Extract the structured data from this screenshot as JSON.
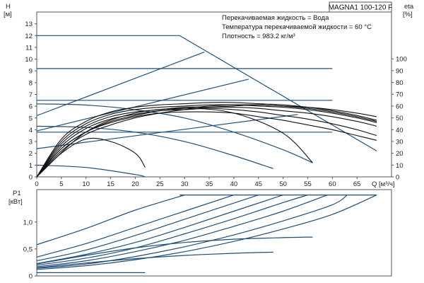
{
  "chart_data": [
    {
      "type": "line",
      "title": "MAGNA1 100-120 F",
      "info": [
        "Перекачиваемая жидкость = Вода",
        "Температура перекачиваемой жидкости = 60 °C",
        "Плотность = 983.2 кг/м³"
      ],
      "xlabel": "Q [м³/ч]",
      "ylabel": "H",
      "ylabel_unit": "[м]",
      "y2label": "eta",
      "y2label_unit": "[%]",
      "xlim": [
        0,
        72
      ],
      "ylim": [
        0,
        14
      ],
      "y2lim": [
        0,
        100
      ],
      "x_ticks": [
        0,
        5,
        10,
        15,
        20,
        25,
        30,
        35,
        40,
        45,
        50,
        55,
        60,
        65
      ],
      "y_ticks": [
        0,
        1,
        2,
        3,
        4,
        5,
        6,
        7,
        8,
        9,
        10,
        11,
        12,
        13
      ],
      "y2_ticks": [
        0,
        10,
        20,
        30,
        40,
        50,
        60,
        70,
        80,
        90,
        100
      ],
      "grid": false,
      "series": [
        {
          "kind": "head",
          "color": "#1f4e79",
          "x": [
            0,
            29,
            69
          ],
          "y": [
            12,
            12,
            2.2
          ]
        },
        {
          "kind": "head",
          "color": "#1f4e79",
          "x": [
            0,
            60
          ],
          "y": [
            9.2,
            9.2
          ]
        },
        {
          "kind": "head",
          "color": "#1f4e79",
          "x": [
            0,
            60
          ],
          "y": [
            6.5,
            6.5
          ]
        },
        {
          "kind": "head",
          "color": "#1f4e79",
          "x": [
            0,
            60
          ],
          "y": [
            3.8,
            3.8
          ]
        },
        {
          "kind": "head",
          "color": "#1f4e79",
          "x": [
            0,
            34
          ],
          "y": [
            5.2,
            10.6
          ]
        },
        {
          "kind": "head",
          "color": "#1f4e79",
          "x": [
            0,
            43
          ],
          "y": [
            3.9,
            8.3
          ]
        },
        {
          "kind": "head",
          "color": "#1f4e79",
          "x": [
            0,
            53
          ],
          "y": [
            2.4,
            5.3
          ]
        },
        {
          "kind": "head",
          "color": "#1f4e79",
          "x": [
            0,
            10,
            20,
            30,
            40,
            50,
            56
          ],
          "y": [
            6.2,
            6.1,
            5.7,
            5.0,
            3.8,
            2.3,
            1.2
          ]
        },
        {
          "kind": "head",
          "color": "#1f4e79",
          "x": [
            0,
            10,
            20,
            30,
            40,
            48
          ],
          "y": [
            4.3,
            4.2,
            3.8,
            3.0,
            1.8,
            0.7
          ]
        },
        {
          "kind": "head",
          "color": "#1f4e79",
          "x": [
            0,
            10,
            20,
            22
          ],
          "y": [
            1.0,
            0.8,
            0.2,
            0.0
          ]
        },
        {
          "kind": "eta",
          "color": "#111111",
          "x": [
            0,
            5,
            10,
            15,
            20,
            25,
            30,
            35,
            40,
            45,
            50,
            55,
            60,
            65,
            69
          ],
          "y": [
            0,
            24,
            38,
            46,
            51,
            54,
            55,
            55,
            54,
            51,
            48,
            44,
            40,
            35,
            31
          ]
        },
        {
          "kind": "eta",
          "color": "#111111",
          "x": [
            0,
            5,
            10,
            15,
            20,
            25,
            30,
            35,
            40,
            45,
            50,
            55,
            60,
            65,
            69
          ],
          "y": [
            0,
            26,
            41,
            49,
            53,
            56,
            57,
            58,
            57,
            55,
            52,
            49,
            45,
            40,
            35
          ]
        },
        {
          "kind": "eta",
          "color": "#111111",
          "x": [
            0,
            5,
            10,
            15,
            20,
            25,
            30,
            35,
            40,
            45,
            50,
            55,
            60,
            65,
            69
          ],
          "y": [
            0,
            28,
            43,
            51,
            55,
            57,
            59,
            59,
            59,
            58,
            56,
            54,
            51,
            47,
            43
          ]
        },
        {
          "kind": "eta",
          "color": "#111111",
          "x": [
            0,
            5,
            10,
            15,
            20,
            25,
            30,
            35,
            40,
            45,
            50,
            55,
            60,
            65,
            69
          ],
          "y": [
            0,
            30,
            45,
            53,
            57,
            59,
            60,
            61,
            61,
            60,
            59,
            57,
            54,
            50,
            46
          ]
        },
        {
          "kind": "eta",
          "color": "#111111",
          "x": [
            0,
            5,
            10,
            15,
            20,
            25,
            30,
            35,
            40,
            45,
            50,
            55,
            60,
            65,
            69
          ],
          "y": [
            0,
            32,
            47,
            55,
            59,
            61,
            62,
            63,
            63,
            62,
            61,
            59,
            56,
            52,
            48
          ]
        },
        {
          "kind": "eta",
          "color": "#111111",
          "x": [
            0,
            5,
            10,
            15,
            20,
            25,
            30,
            35,
            40,
            45,
            50,
            55,
            60,
            65,
            69
          ],
          "y": [
            0,
            22,
            36,
            44,
            50,
            54,
            57,
            59,
            60,
            61,
            60,
            59,
            57,
            54,
            51
          ]
        },
        {
          "kind": "eta",
          "color": "#111111",
          "x": [
            0,
            5,
            10,
            15,
            20,
            25,
            30,
            35,
            40,
            45,
            50,
            55,
            60,
            65,
            69
          ],
          "y": [
            0,
            24,
            38,
            47,
            52,
            56,
            58,
            60,
            61,
            61,
            60,
            58,
            55,
            51,
            47
          ]
        },
        {
          "kind": "eta",
          "color": "#111111",
          "x": [
            0,
            5,
            10,
            15,
            20,
            22
          ],
          "y": [
            0,
            20,
            32,
            30,
            20,
            8
          ]
        },
        {
          "kind": "eta",
          "color": "#111111",
          "x": [
            0,
            10,
            20,
            30,
            40,
            50,
            56
          ],
          "y": [
            0,
            38,
            54,
            58,
            54,
            37,
            12
          ]
        }
      ]
    },
    {
      "type": "line",
      "xlabel": "",
      "ylabel": "P1",
      "ylabel_unit": "[кВт]",
      "xlim": [
        0,
        72
      ],
      "ylim": [
        0,
        1.6
      ],
      "y_ticks": [
        0,
        0.5,
        1.0
      ],
      "y_tick_labels": [
        "0",
        "0,5",
        "1,0"
      ],
      "grid": false,
      "series": [
        {
          "kind": "power",
          "color": "#1f4e79",
          "x": [
            0,
            10,
            20,
            30
          ],
          "y": [
            0.58,
            0.88,
            1.22,
            1.5
          ]
        },
        {
          "kind": "power",
          "color": "#1f4e79",
          "x": [
            0,
            10,
            20,
            30,
            40
          ],
          "y": [
            0.35,
            0.6,
            0.9,
            1.2,
            1.5
          ]
        },
        {
          "kind": "power",
          "color": "#1f4e79",
          "x": [
            0,
            10,
            20,
            30,
            40,
            45
          ],
          "y": [
            0.28,
            0.48,
            0.75,
            1.05,
            1.35,
            1.5
          ]
        },
        {
          "kind": "power",
          "color": "#1f4e79",
          "x": [
            0,
            10,
            20,
            30,
            40,
            50
          ],
          "y": [
            0.23,
            0.4,
            0.62,
            0.9,
            1.2,
            1.5
          ]
        },
        {
          "kind": "power",
          "color": "#1f4e79",
          "x": [
            0,
            10,
            20,
            30,
            40,
            50,
            55
          ],
          "y": [
            0.2,
            0.33,
            0.52,
            0.78,
            1.06,
            1.36,
            1.5
          ]
        },
        {
          "kind": "power",
          "color": "#1f4e79",
          "x": [
            0,
            10,
            20,
            30,
            40,
            50,
            59
          ],
          "y": [
            0.17,
            0.28,
            0.45,
            0.66,
            0.92,
            1.2,
            1.5
          ]
        },
        {
          "kind": "power",
          "color": "#1f4e79",
          "x": [
            0,
            10,
            20,
            30,
            40,
            50,
            60,
            63
          ],
          "y": [
            0.14,
            0.22,
            0.36,
            0.54,
            0.76,
            1.02,
            1.32,
            1.5
          ]
        },
        {
          "kind": "power",
          "color": "#1f4e79",
          "x": [
            0,
            10,
            20,
            30,
            40,
            50,
            60,
            69
          ],
          "y": [
            0.12,
            0.19,
            0.3,
            0.45,
            0.64,
            0.87,
            1.14,
            1.5
          ]
        },
        {
          "kind": "power",
          "color": "#1f4e79",
          "x": [
            0,
            10,
            20,
            30,
            40,
            50,
            56
          ],
          "y": [
            0.22,
            0.38,
            0.52,
            0.62,
            0.68,
            0.71,
            0.72
          ]
        },
        {
          "kind": "power",
          "color": "#1f4e79",
          "x": [
            0,
            10,
            20,
            30,
            40,
            48
          ],
          "y": [
            0.15,
            0.24,
            0.32,
            0.38,
            0.42,
            0.44
          ]
        },
        {
          "kind": "power",
          "color": "#1f4e79",
          "x": [
            0,
            10,
            22
          ],
          "y": [
            0.06,
            0.06,
            0.06
          ]
        },
        {
          "kind": "power",
          "color": "#1f4e79",
          "x": [
            29,
            69
          ],
          "y": [
            1.5,
            1.5
          ]
        }
      ]
    }
  ]
}
